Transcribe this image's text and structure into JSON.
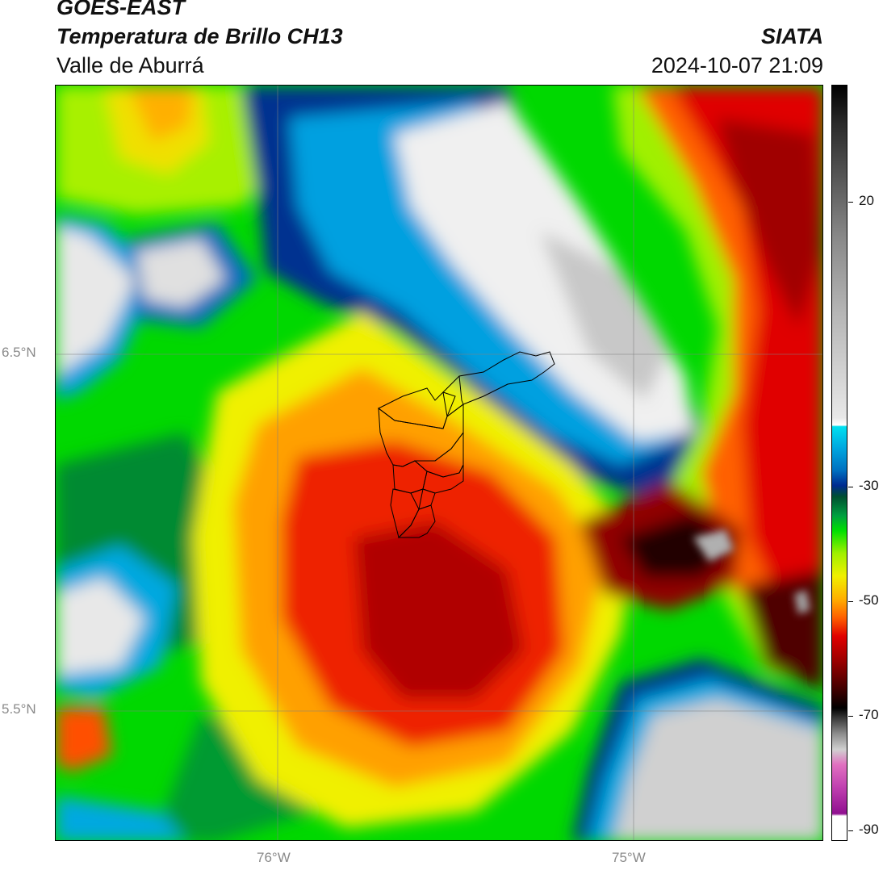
{
  "header": {
    "satellite": "GOES-EAST",
    "product": "Temperatura de Brillo CH13",
    "region": "Valle de Aburrá",
    "institution": "SIATA",
    "datetime": "2024-10-07 21:09"
  },
  "map": {
    "lat_labels": [
      "6.5°N",
      "5.5°N"
    ],
    "lon_labels": [
      "76°W",
      "75°W"
    ]
  },
  "colorbar": {
    "ticks": [
      "20",
      "-30",
      "-50",
      "-70",
      "-90"
    ]
  }
}
